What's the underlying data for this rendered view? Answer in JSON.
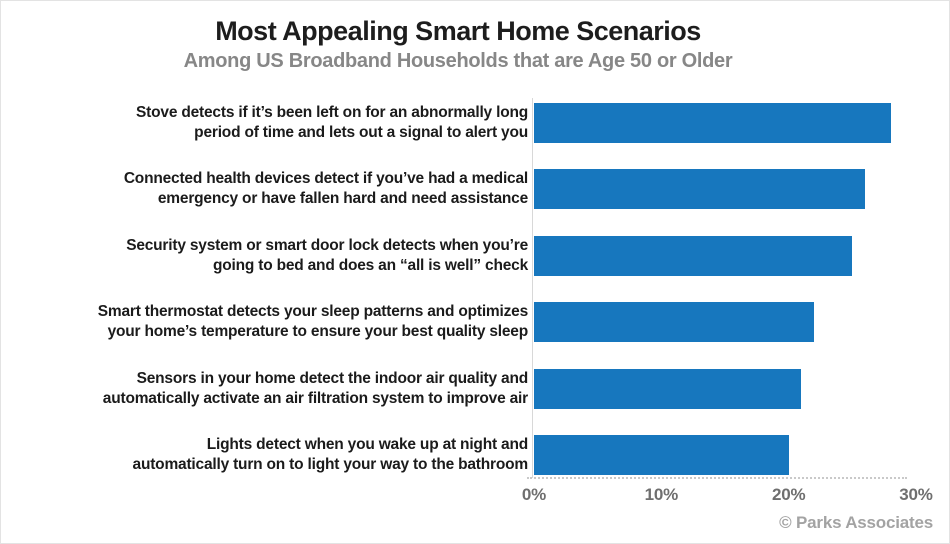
{
  "chart_data": {
    "type": "bar",
    "orientation": "horizontal",
    "title": "Most Appealing Smart Home Scenarios",
    "subtitle": "Among US Broadband Households that are Age 50 or Older",
    "categories": [
      "Stove detects if it’s been left on for an abnormally long period of time and lets out a signal to alert you",
      "Connected health devices detect if you’ve had a medical emergency or have fallen hard and need assistance",
      "Security system or smart door lock detects when you’re going to bed and does an “all is well” check",
      "Smart thermostat detects your sleep patterns and optimizes your home’s temperature to ensure your best quality sleep",
      "Sensors in your home detect the indoor air quality and automatically activate an air filtration system to improve air",
      "Lights detect when you wake up at night and automatically turn on to light your way to the bathroom"
    ],
    "category_lines": [
      [
        "Stove detects if it’s been left on for an abnormally long",
        "period of time and lets out a signal to alert you"
      ],
      [
        "Connected health devices detect if you’ve had a medical",
        "emergency or have fallen hard and need assistance"
      ],
      [
        "Security system or smart door lock detects when you’re",
        "going to bed and does an “all is well” check"
      ],
      [
        "Smart thermostat detects your sleep patterns and optimizes",
        "your home’s temperature to ensure your best quality sleep"
      ],
      [
        "Sensors in your home detect the indoor air quality and",
        "automatically activate an air filtration system to improve air"
      ],
      [
        "Lights detect when you wake up at night and",
        "automatically turn on to light your way to the bathroom"
      ]
    ],
    "values": [
      28,
      26,
      25,
      22,
      21,
      20
    ],
    "unit": "%",
    "xlabel": "",
    "ylabel": "",
    "xlim": [
      0,
      30
    ],
    "xticks": [
      {
        "value": 0,
        "label": "0%"
      },
      {
        "value": 10,
        "label": "10%"
      },
      {
        "value": 20,
        "label": "20%"
      },
      {
        "value": 30,
        "label": "30%"
      }
    ],
    "grid": "dotted baseline only",
    "legend": null,
    "bar_color": "#1777be",
    "source_label": "© Parks Associates"
  }
}
